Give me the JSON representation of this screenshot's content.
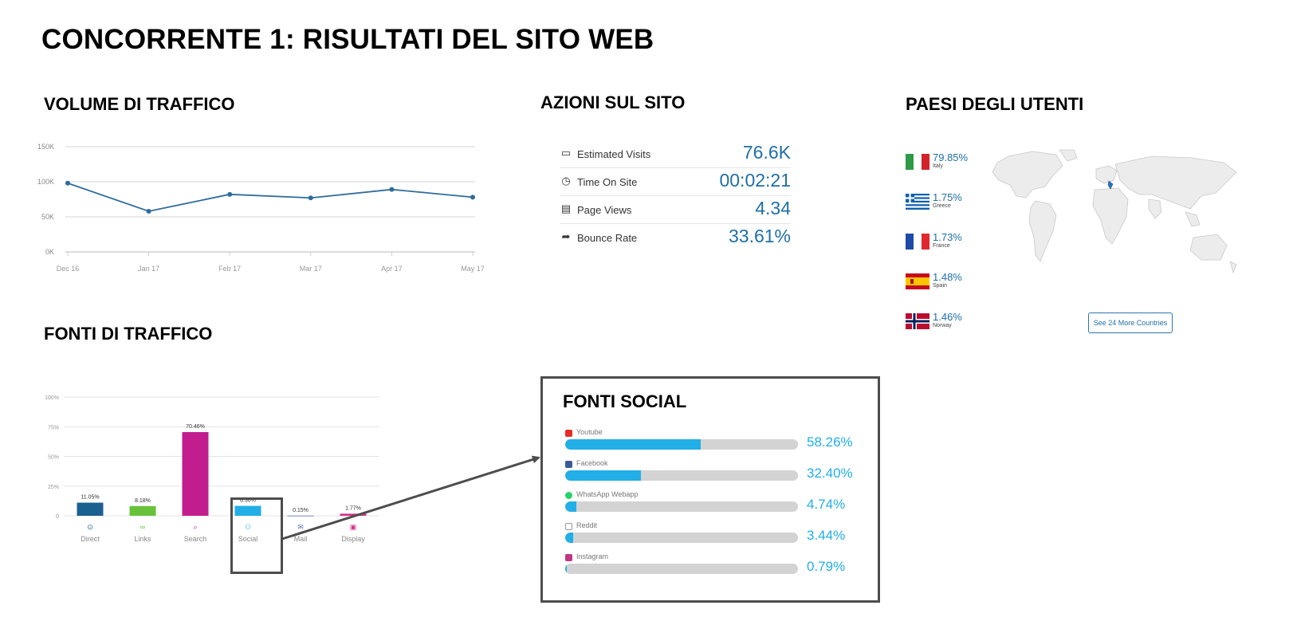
{
  "page_title": "CONCORRENTE 1: RISULTATI DEL SITO WEB",
  "sections": {
    "traffic_volume": "VOLUME DI TRAFFICO",
    "site_actions": "AZIONI SUL SITO",
    "user_countries": "PAESI DEGLI UTENTI",
    "traffic_sources": "FONTI DI TRAFFICO",
    "social_sources": "FONTI SOCIAL"
  },
  "metrics": [
    {
      "icon": "monitor-icon",
      "label": "Estimated Visits",
      "value": "76.6K"
    },
    {
      "icon": "clock-icon",
      "label": "Time On Site",
      "value": "00:02:21"
    },
    {
      "icon": "pages-icon",
      "label": "Page Views",
      "value": "4.34"
    },
    {
      "icon": "bounce-arrow-icon",
      "label": "Bounce Rate",
      "value": "33.61%"
    }
  ],
  "countries": [
    {
      "pct": "79.85%",
      "name": "Italy",
      "flag": "italy-flag-icon"
    },
    {
      "pct": "1.75%",
      "name": "Greece",
      "flag": "greece-flag-icon"
    },
    {
      "pct": "1.73%",
      "name": "France",
      "flag": "france-flag-icon"
    },
    {
      "pct": "1.48%",
      "name": "Spain",
      "flag": "spain-flag-icon"
    },
    {
      "pct": "1.46%",
      "name": "Norway",
      "flag": "norway-flag-icon"
    }
  ],
  "see_more_label": "See 24 More Countries",
  "social": [
    {
      "name": "Youtube",
      "label": "58.26%",
      "value": 58.26,
      "icon_color": "#e52d27"
    },
    {
      "name": "Facebook",
      "label": "32.40%",
      "value": 32.4,
      "icon_color": "#3b5998"
    },
    {
      "name": "WhatsApp Webapp",
      "label": "4.74%",
      "value": 4.74,
      "icon_color": "#25d366"
    },
    {
      "name": "Reddit",
      "label": "3.44%",
      "value": 3.44,
      "icon_color": "#999999"
    },
    {
      "name": "Instagram",
      "label": "0.79%",
      "value": 0.79,
      "icon_color": "#c13584"
    }
  ],
  "colors": {
    "line": "#2f6c9b",
    "value_blue": "#1f6fa6",
    "social_blue": "#22aee6",
    "border": "#4d4d4d"
  },
  "chart_data": [
    {
      "type": "line",
      "x": [
        "Dec 16",
        "Jan 17",
        "Feb 17",
        "Mar 17",
        "Apr 17",
        "May 17"
      ],
      "values": [
        98000,
        58000,
        82000,
        77000,
        89000,
        78000
      ],
      "yticks": [
        "0K",
        "50K",
        "100K",
        "150K"
      ],
      "ylim": [
        0,
        150000
      ],
      "grid": true
    },
    {
      "type": "bar",
      "categories": [
        "Direct",
        "Links",
        "Search",
        "Social",
        "Mail",
        "Display"
      ],
      "values": [
        11.05,
        8.18,
        70.46,
        8.36,
        0.15,
        1.77
      ],
      "labels": [
        "11.05%",
        "8.18%",
        "70.46%",
        "8.36%",
        "0.15%",
        "1.77%"
      ],
      "colors": [
        "#1c5f91",
        "#67c23a",
        "#c21d8e",
        "#22aee6",
        "#5f6fb0",
        "#d6338a"
      ],
      "yticks": [
        "0",
        "25%",
        "50%",
        "75%",
        "100%"
      ],
      "ylim": [
        0,
        100
      ],
      "grid": true
    }
  ]
}
